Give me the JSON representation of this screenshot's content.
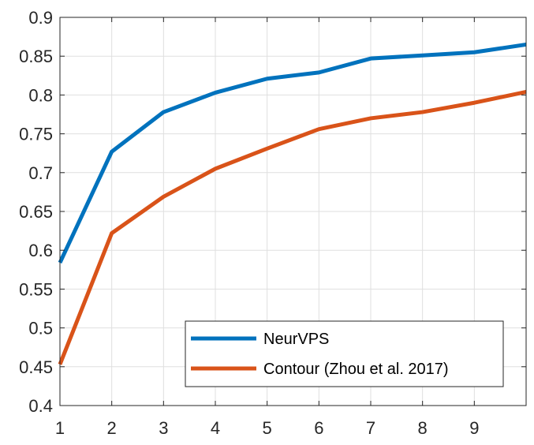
{
  "chart_data": {
    "type": "line",
    "title": "",
    "xlabel": "",
    "ylabel": "",
    "x": [
      1,
      2,
      3,
      4,
      5,
      6,
      7,
      8,
      9,
      10
    ],
    "xlim": [
      1,
      10
    ],
    "ylim": [
      0.4,
      0.9
    ],
    "xticks": [
      "1",
      "2",
      "3",
      "4",
      "5",
      "6",
      "7",
      "8",
      "9"
    ],
    "yticks": [
      "0.4",
      "0.45",
      "0.5",
      "0.55",
      "0.6",
      "0.65",
      "0.7",
      "0.75",
      "0.8",
      "0.85",
      "0.9"
    ],
    "grid": true,
    "legend_position": "bottom-right",
    "series": [
      {
        "name": "NeurVPS",
        "color": "#0072BD",
        "values": [
          0.584,
          0.727,
          0.778,
          0.803,
          0.821,
          0.829,
          0.847,
          0.851,
          0.855,
          0.865
        ]
      },
      {
        "name": "Contour (Zhou et al. 2017)",
        "color": "#D95319",
        "values": [
          0.453,
          0.622,
          0.669,
          0.705,
          0.731,
          0.756,
          0.77,
          0.778,
          0.79,
          0.804
        ]
      }
    ]
  }
}
